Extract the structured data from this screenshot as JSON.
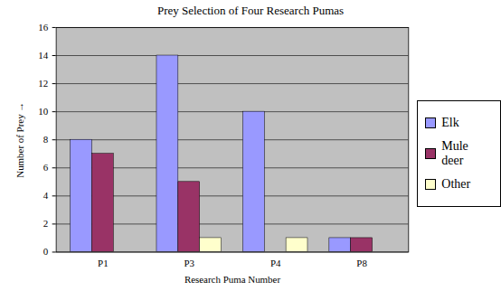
{
  "chart_data": {
    "type": "bar",
    "title": "Prey Selection of Four Research Pumas",
    "x_label": "Research Puma Number",
    "y_label": "Number of Prey",
    "categories": [
      "P1",
      "P3",
      "P4",
      "P8"
    ],
    "series": [
      {
        "name": "Elk",
        "color": "#9999ff",
        "values": [
          8,
          14,
          10,
          1
        ]
      },
      {
        "name": "Mule deer",
        "color": "#993366",
        "values": [
          7,
          5,
          0,
          1
        ]
      },
      {
        "name": "Other",
        "color": "#ffffcc",
        "values": [
          0,
          1,
          1,
          0
        ]
      }
    ],
    "ylim": [
      0,
      16
    ],
    "yticks": [
      0,
      2,
      4,
      6,
      8,
      10,
      12,
      14,
      16
    ],
    "grid": true,
    "legend": "right"
  }
}
